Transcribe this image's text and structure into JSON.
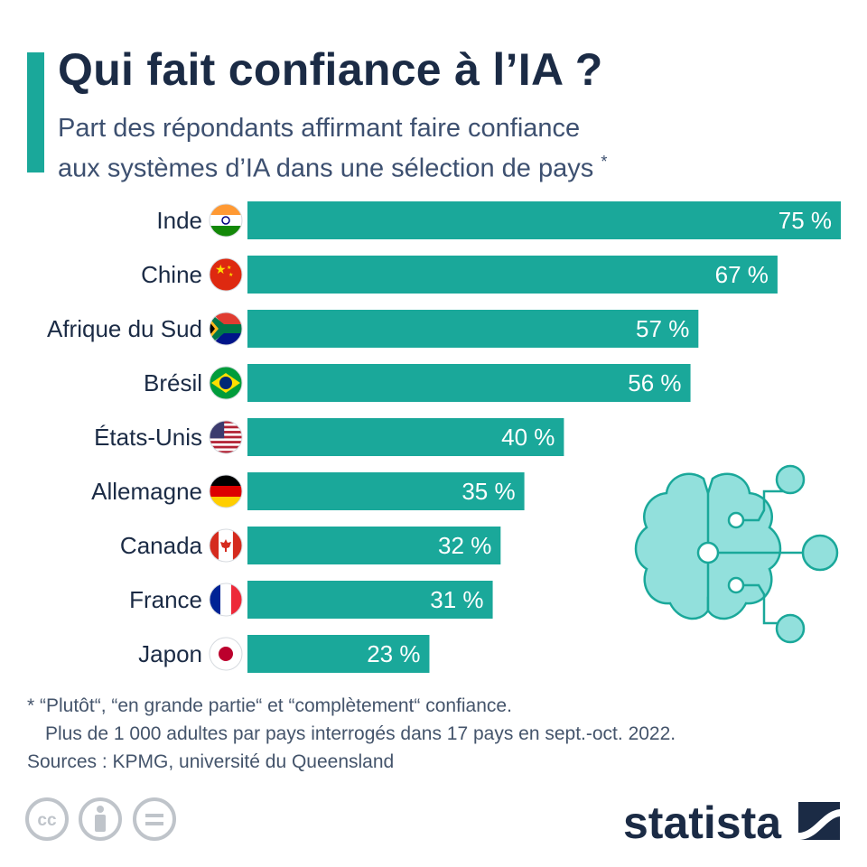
{
  "title": "Qui fait confiance à l’IA ?",
  "subtitle_line1": "Part des répondants affirmant faire confiance",
  "subtitle_line2": "aux systèmes d’IA dans une sélection de pays",
  "subtitle_marker": "*",
  "chart_data": {
    "type": "bar",
    "orientation": "horizontal",
    "categories": [
      "Inde",
      "Chine",
      "Afrique du Sud",
      "Brésil",
      "États-Unis",
      "Allemagne",
      "Canada",
      "France",
      "Japon"
    ],
    "values": [
      75,
      67,
      57,
      56,
      40,
      35,
      32,
      31,
      23
    ],
    "value_labels": [
      "75 %",
      "67 %",
      "57 %",
      "56 %",
      "40 %",
      "35 %",
      "32 %",
      "31 %",
      "23 %"
    ],
    "flags": [
      "india-flag-icon",
      "china-flag-icon",
      "south-africa-flag-icon",
      "brazil-flag-icon",
      "usa-flag-icon",
      "germany-flag-icon",
      "canada-flag-icon",
      "france-flag-icon",
      "japan-flag-icon"
    ],
    "xlim": [
      0,
      75
    ],
    "grid": false,
    "bar_color": "#1aa89a"
  },
  "footnote_line1": "* “Plutôt“, “en grande partie“ et “complètement“ confiance.",
  "footnote_line2": "Plus de 1 000 adultes par pays interrogés dans 17 pays en sept.-oct. 2022.",
  "sources": "Sources : KPMG, université du Queensland",
  "brand": "statista",
  "illustration": "brain-circuit-icon",
  "license_icons": [
    "creative-commons-icon",
    "attribution-icon",
    "no-derivatives-icon"
  ],
  "colors": {
    "accent": "#1aa89a",
    "title": "#1b2b45",
    "illustration": "#92e0dc"
  }
}
